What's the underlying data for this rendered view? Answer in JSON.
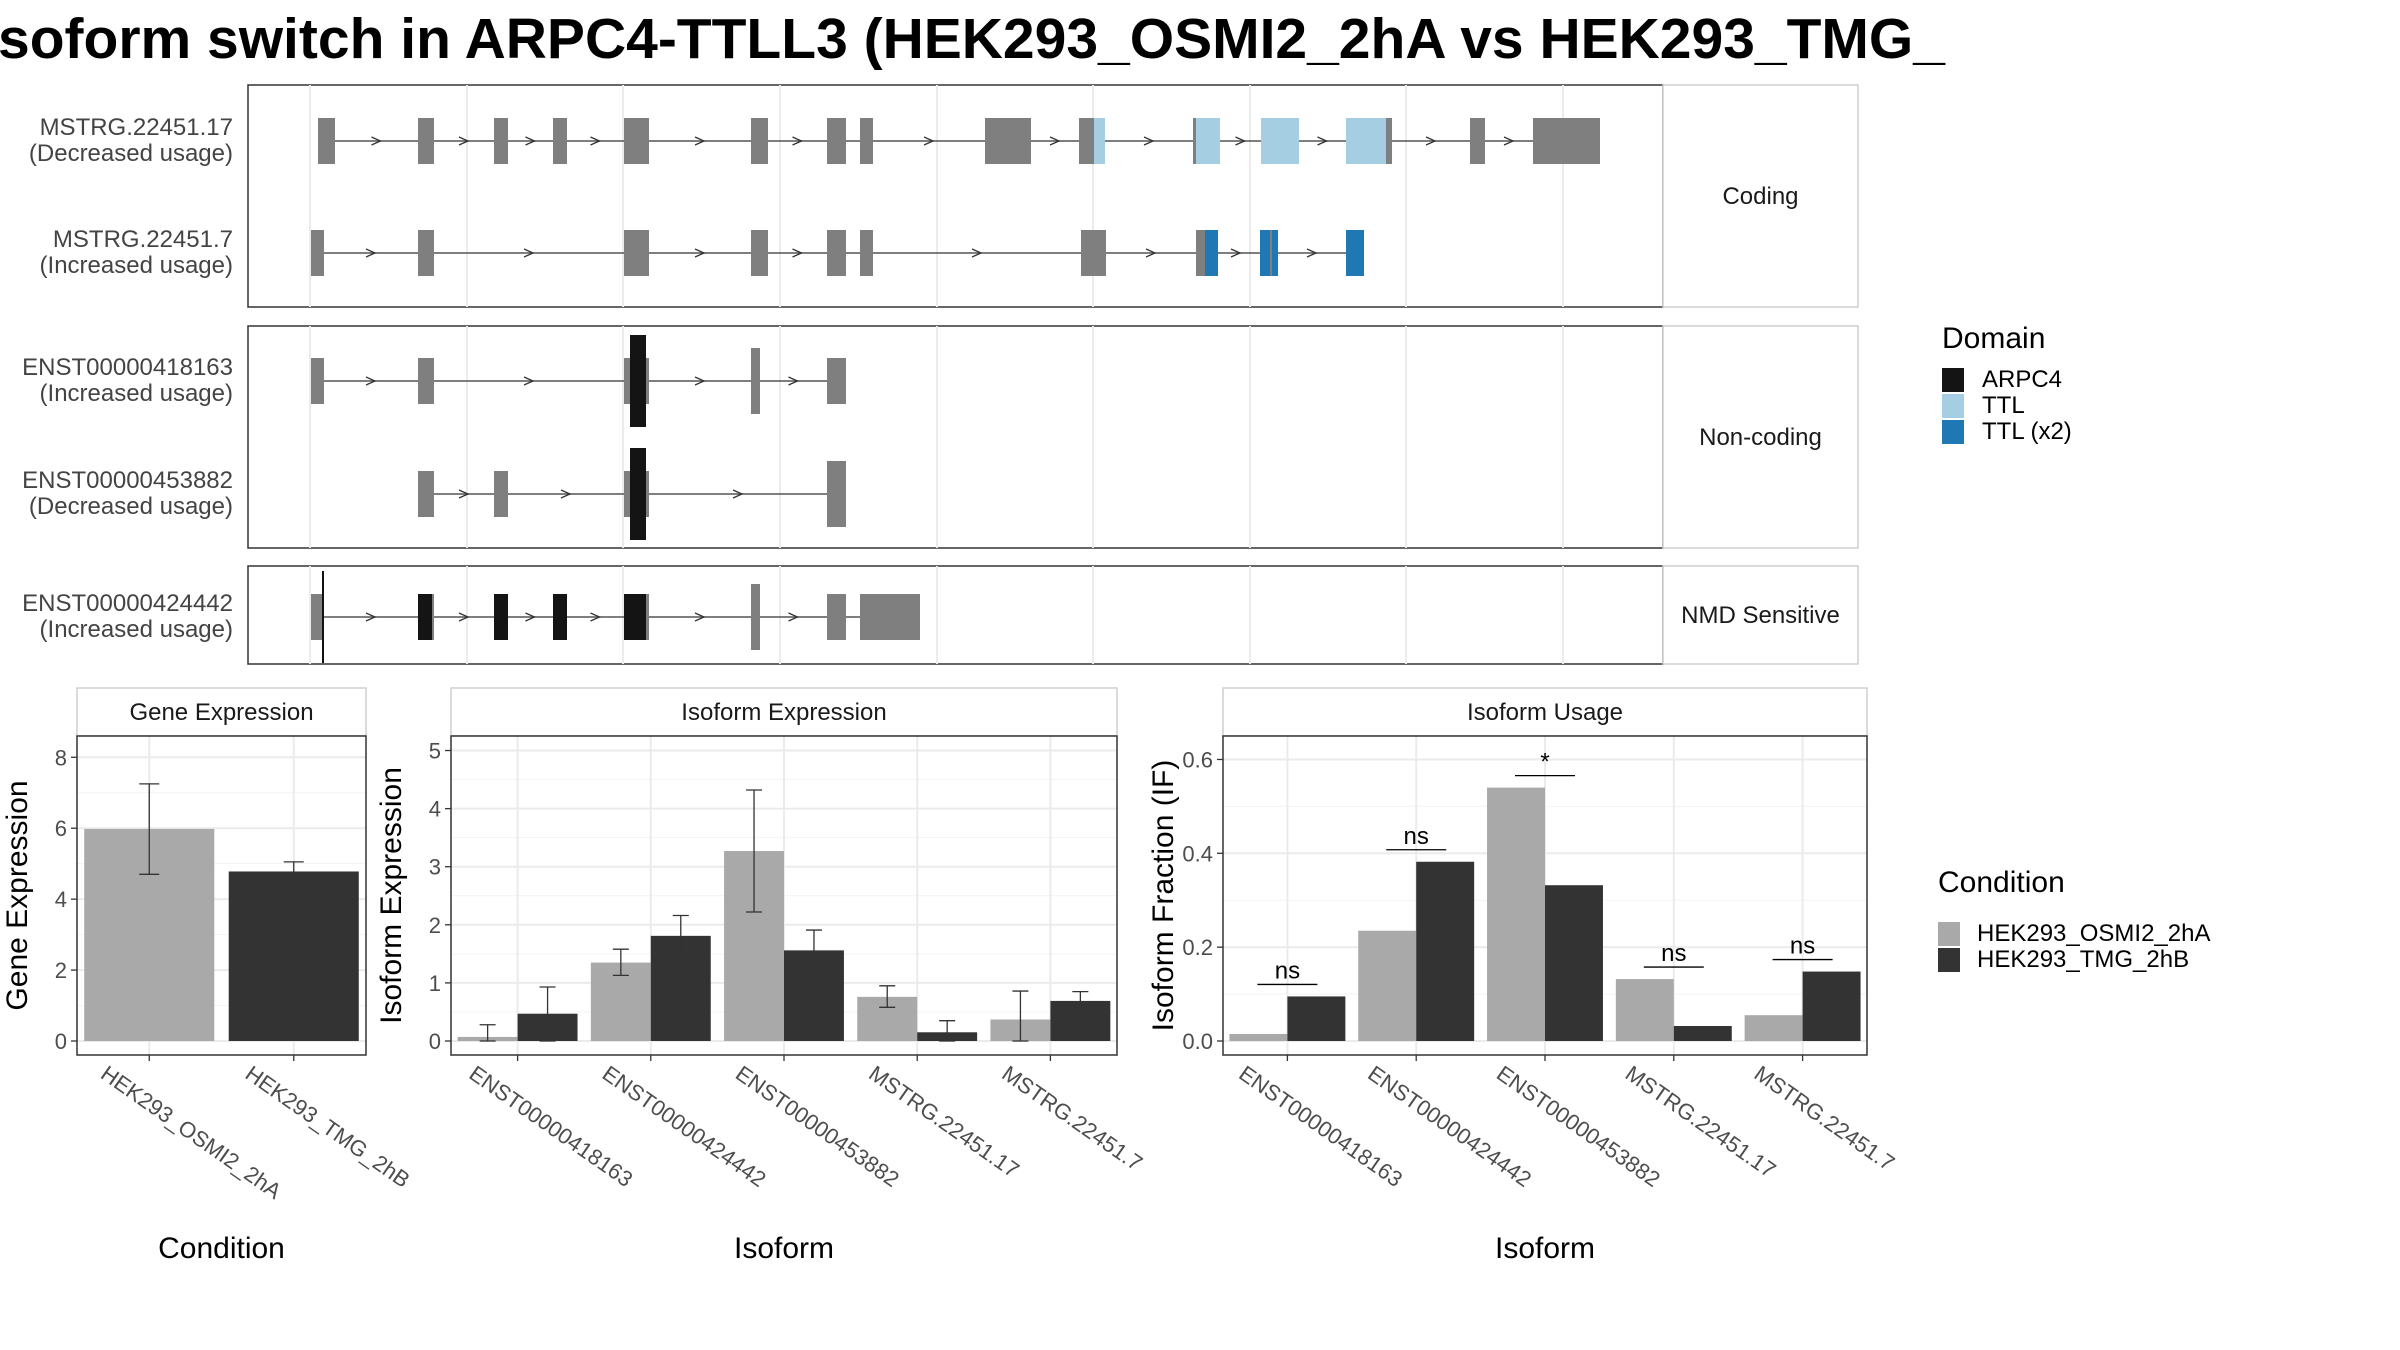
{
  "title": "soform switch in ARPC4-TTLL3 (HEK293_OSMI2_2hA vs HEK293_TMG_",
  "colors": {
    "exon": "#7f7f7f",
    "ARPC4": "#141414",
    "TTL": "#a6cee3",
    "TTL (x2)": "#1f78b4",
    "cond_a": "#a9a9a9",
    "cond_b": "#333333"
  },
  "transcript_panel": {
    "facets": [
      {
        "label": "Coding",
        "tracks": [
          {
            "id": "MSTRG.22451.17",
            "usage": "(Decreased usage)"
          },
          {
            "id": "MSTRG.22451.7",
            "usage": "(Increased usage)"
          }
        ]
      },
      {
        "label": "Non-coding",
        "tracks": [
          {
            "id": "ENST00000418163",
            "usage": "(Increased usage)"
          },
          {
            "id": "ENST00000453882",
            "usage": "(Decreased usage)"
          }
        ]
      },
      {
        "label": "NMD Sensitive",
        "tracks": [
          {
            "id": "ENST00000424442",
            "usage": "(Increased usage)"
          }
        ]
      }
    ],
    "domain_legend": {
      "title": "Domain",
      "items": [
        "ARPC4",
        "TTL",
        "TTL (x2)"
      ]
    }
  },
  "condition_legend": {
    "title": "Condition",
    "items": [
      "HEK293_OSMI2_2hA",
      "HEK293_TMG_2hB"
    ]
  },
  "chart_data": [
    {
      "type": "bar",
      "strip": "Gene Expression",
      "ylabel": "Gene Expression",
      "xlabel": "Condition",
      "ylim": [
        0,
        8.6
      ],
      "yticks": [
        0,
        2,
        4,
        6,
        8
      ],
      "categories": [
        "HEK293_OSMI2_2hA",
        "HEK293_TMG_2hB"
      ],
      "values": [
        5.98,
        4.78
      ],
      "errors": [
        [
          4.7,
          7.25
        ],
        [
          4.5,
          5.05
        ]
      ]
    },
    {
      "type": "bar",
      "strip": "Isoform Expression",
      "ylabel": "Isoform Expression",
      "xlabel": "Isoform",
      "ylim": [
        0,
        5.25
      ],
      "yticks": [
        0,
        1,
        2,
        3,
        4,
        5
      ],
      "categories": [
        "ENST00000418163",
        "ENST00000424442",
        "ENST00000453882",
        "MSTRG.22451.17",
        "MSTRG.22451.7"
      ],
      "series": [
        {
          "name": "HEK293_OSMI2_2hA",
          "values": [
            0.07,
            1.35,
            3.27,
            0.76,
            0.37
          ],
          "errors": [
            [
              0.0,
              0.28
            ],
            [
              1.13,
              1.58
            ],
            [
              2.22,
              4.32
            ],
            [
              0.58,
              0.95
            ],
            [
              0.0,
              0.86
            ]
          ]
        },
        {
          "name": "HEK293_TMG_2hB",
          "values": [
            0.47,
            1.81,
            1.56,
            0.15,
            0.69
          ],
          "errors": [
            [
              0.0,
              0.93
            ],
            [
              1.45,
              2.16
            ],
            [
              1.22,
              1.91
            ],
            [
              0.0,
              0.35
            ],
            [
              0.53,
              0.85
            ]
          ]
        }
      ]
    },
    {
      "type": "bar",
      "strip": "Isoform Usage",
      "ylabel": "Isoform Fraction (IF)",
      "xlabel": "Isoform",
      "ylim": [
        0,
        0.65
      ],
      "yticks": [
        0.0,
        0.2,
        0.4,
        0.6
      ],
      "categories": [
        "ENST00000418163",
        "ENST00000424442",
        "ENST00000453882",
        "MSTRG.22451.17",
        "MSTRG.22451.7"
      ],
      "series": [
        {
          "name": "HEK293_OSMI2_2hA",
          "values": [
            0.015,
            0.235,
            0.54,
            0.132,
            0.055
          ]
        },
        {
          "name": "HEK293_TMG_2hB",
          "values": [
            0.095,
            0.382,
            0.332,
            0.032,
            0.148
          ]
        }
      ],
      "significance": [
        "ns",
        "ns",
        "*",
        "ns",
        "ns"
      ]
    }
  ]
}
